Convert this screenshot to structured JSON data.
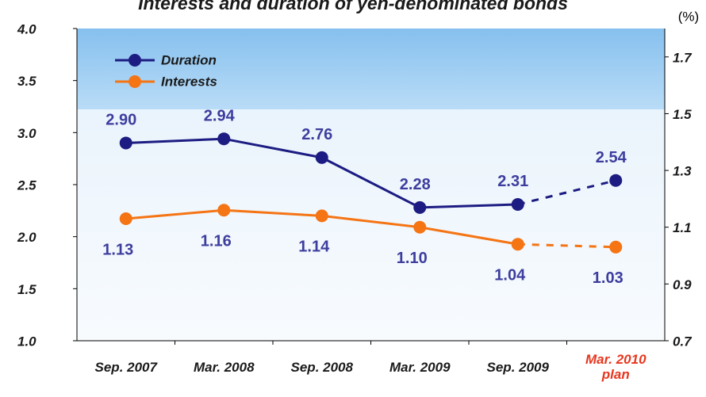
{
  "chart_data": {
    "type": "line",
    "title": "Interests and duration of yen-denominated bonds",
    "y2_label": "(%)",
    "categories": [
      "Sep. 2007",
      "Mar. 2008",
      "Sep. 2008",
      "Mar. 2009",
      "Sep. 2009",
      "Mar. 2010\nplan"
    ],
    "category_label_colors": [
      "#1a1a1a",
      "#1a1a1a",
      "#1a1a1a",
      "#1a1a1a",
      "#1a1a1a",
      "#e8361e"
    ],
    "series": [
      {
        "name": "Duration",
        "color": "#1c1c82",
        "axis": "y",
        "values": [
          2.9,
          2.94,
          2.76,
          2.28,
          2.31,
          2.54
        ],
        "value_labels": [
          "2.90",
          "2.94",
          "2.76",
          "2.28",
          "2.31",
          "2.54"
        ],
        "dashed_last_segment": true
      },
      {
        "name": "Interests",
        "color": "#f57414",
        "axis": "y2",
        "values": [
          1.13,
          1.16,
          1.14,
          1.1,
          1.04,
          1.03
        ],
        "value_labels": [
          "1.13",
          "1.16",
          "1.14",
          "1.10",
          "1.04",
          "1.03"
        ],
        "dashed_last_segment": true
      }
    ],
    "value_label_color": "#3d3d9e",
    "ylim": [
      1,
      4
    ],
    "yticks": [
      {
        "value": 1,
        "label": "1.0"
      },
      1.5,
      {
        "value": 2,
        "label": "2.0"
      },
      2.5,
      {
        "value": 3,
        "label": "3.0"
      },
      3.5,
      {
        "value": 4,
        "label": "4.0"
      }
    ],
    "y2lim": [
      0.7,
      1.8
    ],
    "y2ticks": [
      0.7,
      0.9,
      1.1,
      1.3,
      1.5,
      1.7
    ],
    "legend": "upper left"
  }
}
